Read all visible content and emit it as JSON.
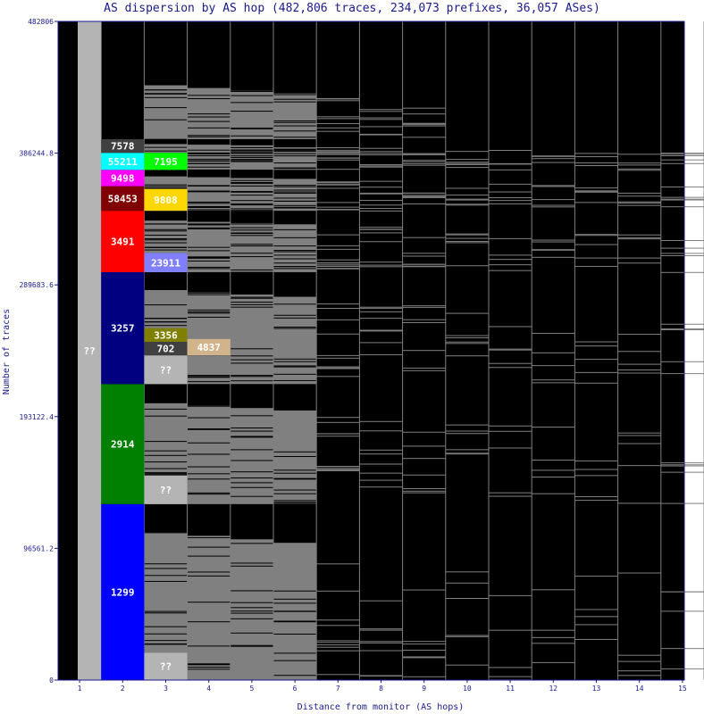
{
  "chart_data": {
    "type": "bar",
    "title": "AS dispersion by AS hop (482,806 traces, 234,073 prefixes, 36,057 ASes)",
    "xlabel": "Distance from monitor (AS hops)",
    "ylabel": "Number of traces",
    "ylim": [
      0,
      482806
    ],
    "y_ticks": [
      "0",
      "96561.2",
      "193122.4",
      "289683.6",
      "386244.8",
      "482806"
    ],
    "categories": [
      "1",
      "2",
      "3",
      "4",
      "5",
      "6",
      "7",
      "8",
      "9",
      "10",
      "11",
      "12",
      "13",
      "14",
      "15"
    ],
    "colors": {
      "background": "#000000",
      "fill_gray": "#808080",
      "unknown_gray": "#b4b4b4",
      "axis": "#1a1a8c"
    },
    "hop_totals": [
      482806,
      482806,
      482806,
      482806,
      482806,
      482806,
      482806,
      482806,
      482806,
      482806,
      482806,
      482806,
      482806,
      482806,
      482806
    ],
    "labeled_segments": [
      {
        "hop": "1",
        "label": "??",
        "y0": 0,
        "y1": 482806,
        "color": "#b4b4b4"
      },
      {
        "hop": "2",
        "label": "1299",
        "y0": 0,
        "y1": 129000,
        "color": "#0000ff"
      },
      {
        "hop": "2",
        "label": "2914",
        "y0": 129000,
        "y1": 217000,
        "color": "#008000"
      },
      {
        "hop": "2",
        "label": "3257",
        "y0": 217000,
        "y1": 299000,
        "color": "#000080"
      },
      {
        "hop": "2",
        "label": "3491",
        "y0": 299000,
        "y1": 344000,
        "color": "#ff0000"
      },
      {
        "hop": "2",
        "label": "58453",
        "y0": 344000,
        "y1": 362000,
        "color": "#800000"
      },
      {
        "hop": "2",
        "label": "9498",
        "y0": 362000,
        "y1": 374000,
        "color": "#ff00ff"
      },
      {
        "hop": "2",
        "label": "55211",
        "y0": 374000,
        "y1": 386500,
        "color": "#00ffff"
      },
      {
        "hop": "2",
        "label": "7578",
        "y0": 386500,
        "y1": 396500,
        "color": "#404040"
      },
      {
        "hop": "3",
        "label": "??",
        "y0": 0,
        "y1": 20000,
        "color": "#b4b4b4"
      },
      {
        "hop": "3",
        "label": "??",
        "y0": 129000,
        "y1": 150000,
        "color": "#b4b4b4"
      },
      {
        "hop": "3",
        "label": "??",
        "y0": 217000,
        "y1": 238000,
        "color": "#b4b4b4"
      },
      {
        "hop": "3",
        "label": "702",
        "y0": 238000,
        "y1": 248000,
        "color": "#404040"
      },
      {
        "hop": "3",
        "label": "3356",
        "y0": 248000,
        "y1": 258000,
        "color": "#808000"
      },
      {
        "hop": "3",
        "label": "23911",
        "y0": 299000,
        "y1": 313000,
        "color": "#8080ff"
      },
      {
        "hop": "3",
        "label": "9808",
        "y0": 344000,
        "y1": 360000,
        "color": "#ffd700"
      },
      {
        "hop": "3",
        "label": "7195",
        "y0": 374000,
        "y1": 386500,
        "color": "#00ff00"
      },
      {
        "hop": "4",
        "label": "4837",
        "y0": 238000,
        "y1": 250000,
        "color": "#d2b48c"
      }
    ]
  }
}
